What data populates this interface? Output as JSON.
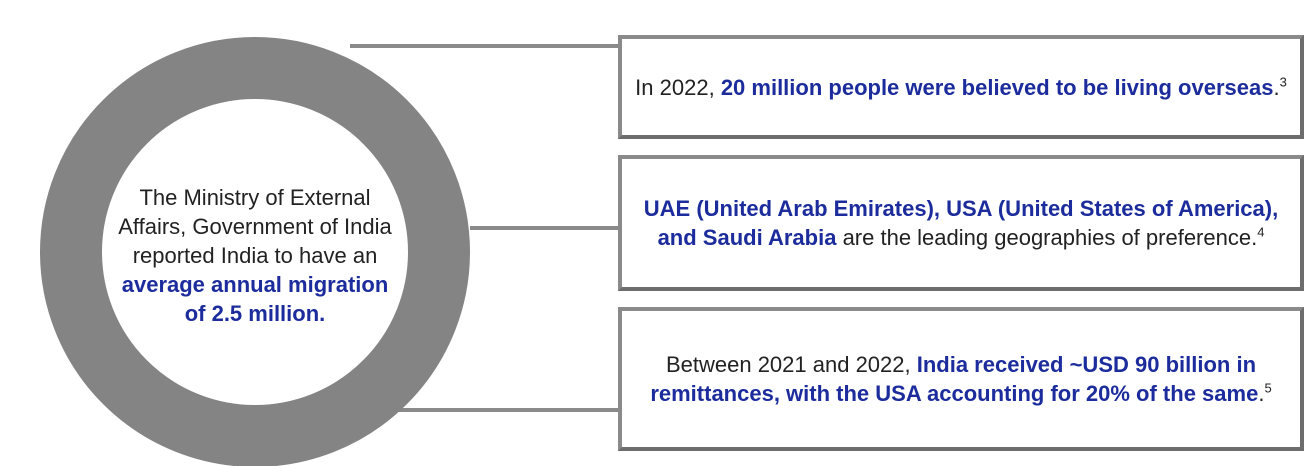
{
  "center": {
    "segments": [
      {
        "text": "The Ministry of External Affairs, Government of India reported India to have an ",
        "style": "plain"
      },
      {
        "text": "average annual migration of 2.5 million.",
        "style": "bold"
      }
    ]
  },
  "boxes": [
    {
      "segments": [
        {
          "text": "In 2022, ",
          "style": "plain"
        },
        {
          "text": "20 million people were believed to be living overseas",
          "style": "bold"
        },
        {
          "text": ".",
          "style": "plain"
        },
        {
          "text": "3",
          "style": "sup"
        }
      ]
    },
    {
      "segments": [
        {
          "text": "UAE (United Arab Emirates), USA (United States of America), and Saudi Arabia",
          "style": "bold"
        },
        {
          "text": " are the leading geographies of preference.",
          "style": "plain"
        },
        {
          "text": "4",
          "style": "sup"
        }
      ]
    },
    {
      "segments": [
        {
          "text": "Between 2021 and 2022, ",
          "style": "plain"
        },
        {
          "text": "India received ~USD 90 billion in remittances, with the USA accounting for 20% of the same",
          "style": "bold"
        },
        {
          "text": ".",
          "style": "plain"
        },
        {
          "text": "5",
          "style": "sup"
        }
      ]
    }
  ]
}
